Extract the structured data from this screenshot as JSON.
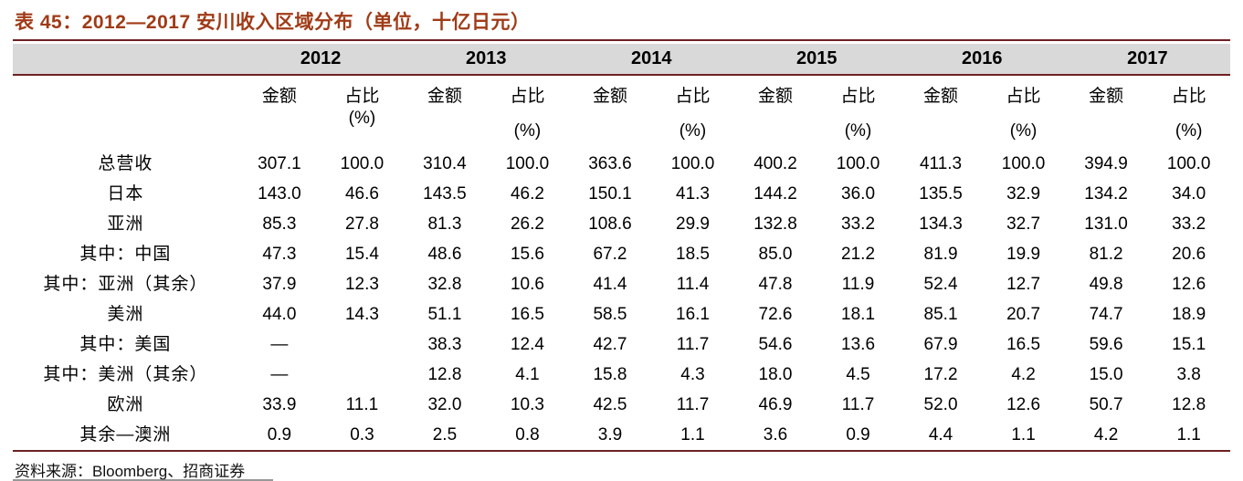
{
  "title": "表 45：2012—2017 安川收入区域分布（单位，十亿日元）",
  "source": "资料来源：Bloomberg、招商证券",
  "colors": {
    "title_text": "#a03b17",
    "rule": "#6e1f22",
    "year_band_bg": "#d9d9d9",
    "body_text": "#000000"
  },
  "chart_data": {
    "type": "table",
    "title": "2012—2017 安川收入区域分布（单位，十亿日元）",
    "years": [
      "2012",
      "2013",
      "2014",
      "2015",
      "2016",
      "2017"
    ],
    "subheaders": {
      "amount": "金额",
      "pct": "占比",
      "pct_unit": "(%)"
    },
    "rows": [
      {
        "label": "总营收",
        "values": [
          "307.1",
          "100.0",
          "310.4",
          "100.0",
          "363.6",
          "100.0",
          "400.2",
          "100.0",
          "411.3",
          "100.0",
          "394.9",
          "100.0"
        ]
      },
      {
        "label": "日本",
        "values": [
          "143.0",
          "46.6",
          "143.5",
          "46.2",
          "150.1",
          "41.3",
          "144.2",
          "36.0",
          "135.5",
          "32.9",
          "134.2",
          "34.0"
        ]
      },
      {
        "label": "亚洲",
        "values": [
          "85.3",
          "27.8",
          "81.3",
          "26.2",
          "108.6",
          "29.9",
          "132.8",
          "33.2",
          "134.3",
          "32.7",
          "131.0",
          "33.2"
        ]
      },
      {
        "label": "其中：中国",
        "values": [
          "47.3",
          "15.4",
          "48.6",
          "15.6",
          "67.2",
          "18.5",
          "85.0",
          "21.2",
          "81.9",
          "19.9",
          "81.2",
          "20.6"
        ]
      },
      {
        "label": "其中：亚洲（其余）",
        "values": [
          "37.9",
          "12.3",
          "32.8",
          "10.6",
          "41.4",
          "11.4",
          "47.8",
          "11.9",
          "52.4",
          "12.7",
          "49.8",
          "12.6"
        ]
      },
      {
        "label": "美洲",
        "values": [
          "44.0",
          "14.3",
          "51.1",
          "16.5",
          "58.5",
          "16.1",
          "72.6",
          "18.1",
          "85.1",
          "20.7",
          "74.7",
          "18.9"
        ]
      },
      {
        "label": "其中：美国",
        "values": [
          "—",
          "",
          "38.3",
          "12.4",
          "42.7",
          "11.7",
          "54.6",
          "13.6",
          "67.9",
          "16.5",
          "59.6",
          "15.1"
        ]
      },
      {
        "label": "其中：美洲（其余）",
        "values": [
          "—",
          "",
          "12.8",
          "4.1",
          "15.8",
          "4.3",
          "18.0",
          "4.5",
          "17.2",
          "4.2",
          "15.0",
          "3.8"
        ]
      },
      {
        "label": "欧洲",
        "values": [
          "33.9",
          "11.1",
          "32.0",
          "10.3",
          "42.5",
          "11.7",
          "46.9",
          "11.7",
          "52.0",
          "12.6",
          "50.7",
          "12.8"
        ]
      },
      {
        "label": "其余—澳洲",
        "values": [
          "0.9",
          "0.3",
          "2.5",
          "0.8",
          "3.9",
          "1.1",
          "3.6",
          "0.9",
          "4.4",
          "1.1",
          "4.2",
          "1.1"
        ]
      }
    ]
  }
}
